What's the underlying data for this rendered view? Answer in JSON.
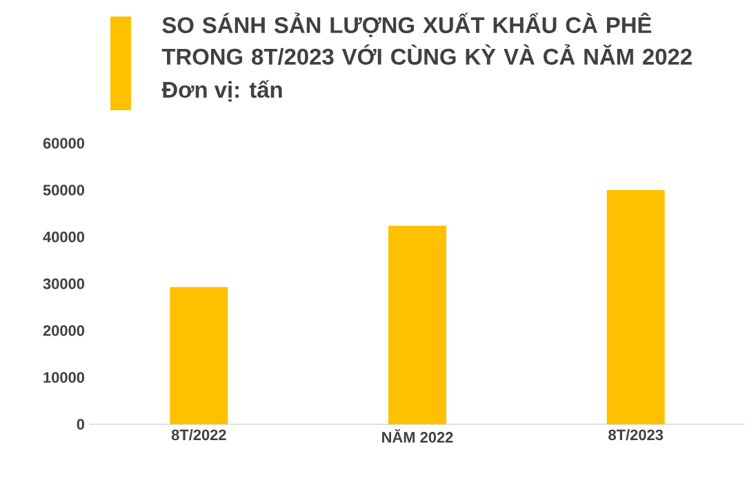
{
  "chart_data": {
    "type": "bar",
    "title": "SO SÁNH SẢN LƯỢNG XUẤT KHẨU CÀ PHÊ TRONG 8T/2023 VỚI CÙNG KỲ VÀ CẢ NĂM 2022",
    "subtitle": "Đơn vị: tấn",
    "categories": [
      "8T/2022",
      "NĂM 2022",
      "8T/2023"
    ],
    "values": [
      29300,
      42400,
      50000
    ],
    "color": "#ffc000",
    "ylim": [
      0,
      60000
    ],
    "yticks": [
      0,
      10000,
      20000,
      30000,
      40000,
      50000,
      60000
    ],
    "grid": false
  }
}
